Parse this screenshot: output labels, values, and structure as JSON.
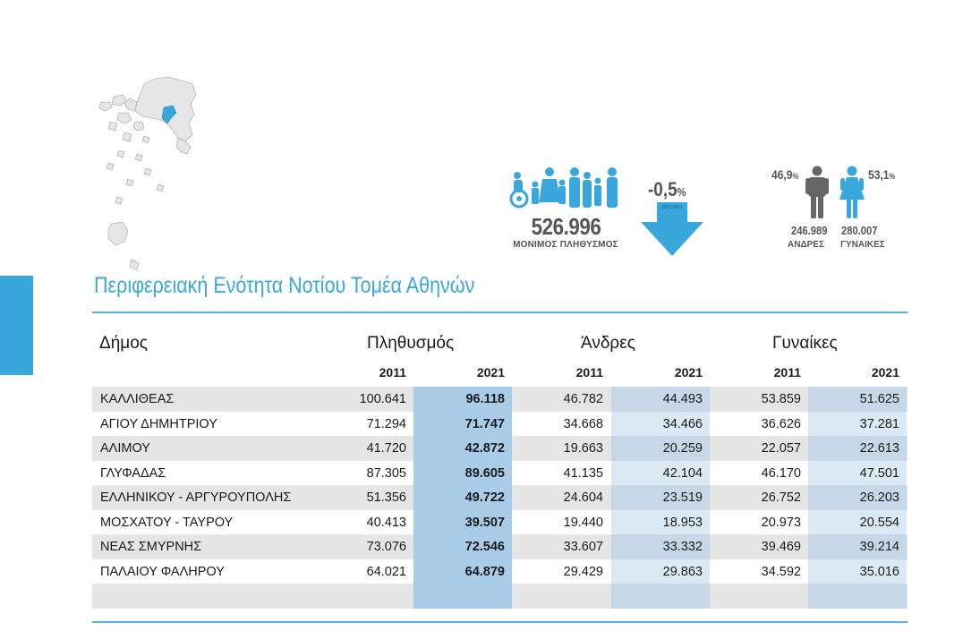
{
  "header": {
    "population_total": "526.996",
    "population_caption": "ΜΟΝΙΜΟΣ ΠΛΗΘΥΣΜΟΣ",
    "change_value": "-0,5",
    "change_unit": "%",
    "change_period": "2021/2011",
    "men_percent": "46,9",
    "women_percent": "53,1",
    "percent_unit": "%",
    "men_count": "246.989",
    "women_count": "280.007",
    "men_label": "ΑΝΔΡΕΣ",
    "women_label": "ΓΥΝΑΙΚΕΣ"
  },
  "title": "Περιφερειακή Ενότητα Νοτίου Τομέα Αθηνών",
  "colors": {
    "accent": "#3aa7dc",
    "col_2021_pop": "#a9cce8",
    "col_2021_light": "#dbe9f5",
    "col_2021_dark": "#c6d8e8",
    "row_shade": "#e5e5e5"
  },
  "table": {
    "headers": {
      "municipality": "Δήμος",
      "population": "Πληθυσμός",
      "men": "Άνδρες",
      "women": "Γυναίκες"
    },
    "years": [
      "2011",
      "2021",
      "2011",
      "2021",
      "2011",
      "2021"
    ],
    "rows": [
      {
        "name": "ΚΑΛΛΙΘΕΑΣ",
        "pop2011": "100.641",
        "pop2021": "96.118",
        "men2011": "46.782",
        "men2021": "44.493",
        "women2011": "53.859",
        "women2021": "51.625"
      },
      {
        "name": "ΑΓΙΟΥ ΔΗΜΗΤΡΙΟΥ",
        "pop2011": "71.294",
        "pop2021": "71.747",
        "men2011": "34.668",
        "men2021": "34.466",
        "women2011": "36.626",
        "women2021": "37.281"
      },
      {
        "name": "ΑΛΙΜΟΥ",
        "pop2011": "41.720",
        "pop2021": "42.872",
        "men2011": "19.663",
        "men2021": "20.259",
        "women2011": "22.057",
        "women2021": "22.613"
      },
      {
        "name": "ΓΛΥΦΑΔΑΣ",
        "pop2011": "87.305",
        "pop2021": "89.605",
        "men2011": "41.135",
        "men2021": "42.104",
        "women2011": "46.170",
        "women2021": "47.501"
      },
      {
        "name": "ΕΛΛΗΝΙΚΟΥ - ΑΡΓΥΡΟΥΠΟΛΗΣ",
        "pop2011": "51.356",
        "pop2021": "49.722",
        "men2011": "24.604",
        "men2021": "23.519",
        "women2011": "26.752",
        "women2021": "26.203"
      },
      {
        "name": "ΜΟΣΧΑΤΟΥ - ΤΑΥΡΟΥ",
        "pop2011": "40.413",
        "pop2021": "39.507",
        "men2011": "19.440",
        "men2021": "18.953",
        "women2011": "20.973",
        "women2021": "20.554"
      },
      {
        "name": "ΝΕΑΣ ΣΜΥΡΝΗΣ",
        "pop2011": "73.076",
        "pop2021": "72.546",
        "men2011": "33.607",
        "men2021": "33.332",
        "women2011": "39.469",
        "women2021": "39.214"
      },
      {
        "name": "ΠΑΛΑΙΟΥ ΦΑΛΗΡΟΥ",
        "pop2011": "64.021",
        "pop2021": "64.879",
        "men2011": "29.429",
        "men2021": "29.863",
        "women2011": "34.592",
        "women2021": "35.016"
      }
    ]
  }
}
